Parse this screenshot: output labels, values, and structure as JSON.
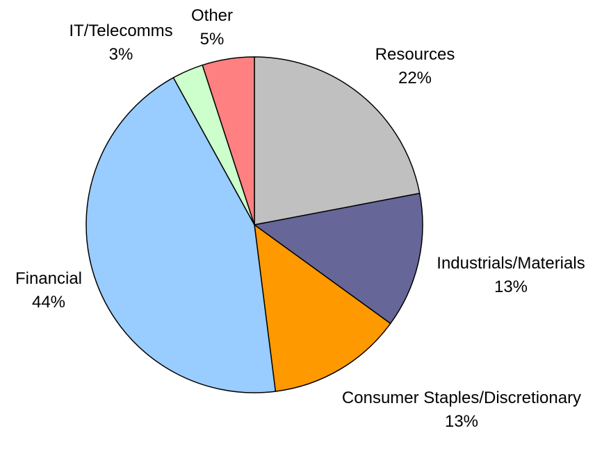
{
  "chart_data": {
    "type": "pie",
    "title": "",
    "start_angle_deg": 0,
    "direction": "clockwise",
    "outline_color": "#000000",
    "slices": [
      {
        "label": "Resources",
        "pct_label": "22%",
        "value": 22,
        "color": "#C0C0C0"
      },
      {
        "label": "Industrials/Materials",
        "pct_label": "13%",
        "value": 13,
        "color": "#666699"
      },
      {
        "label": "Consumer Staples/Discretionary",
        "pct_label": "13%",
        "value": 13,
        "color": "#FF9900"
      },
      {
        "label": "Financial",
        "pct_label": "44%",
        "value": 44,
        "color": "#99CCFF"
      },
      {
        "label": "IT/Telecomms",
        "pct_label": "3%",
        "value": 3,
        "color": "#CCFFCC"
      },
      {
        "label": "Other",
        "pct_label": "5%",
        "value": 5,
        "color": "#FF8080"
      }
    ]
  }
}
